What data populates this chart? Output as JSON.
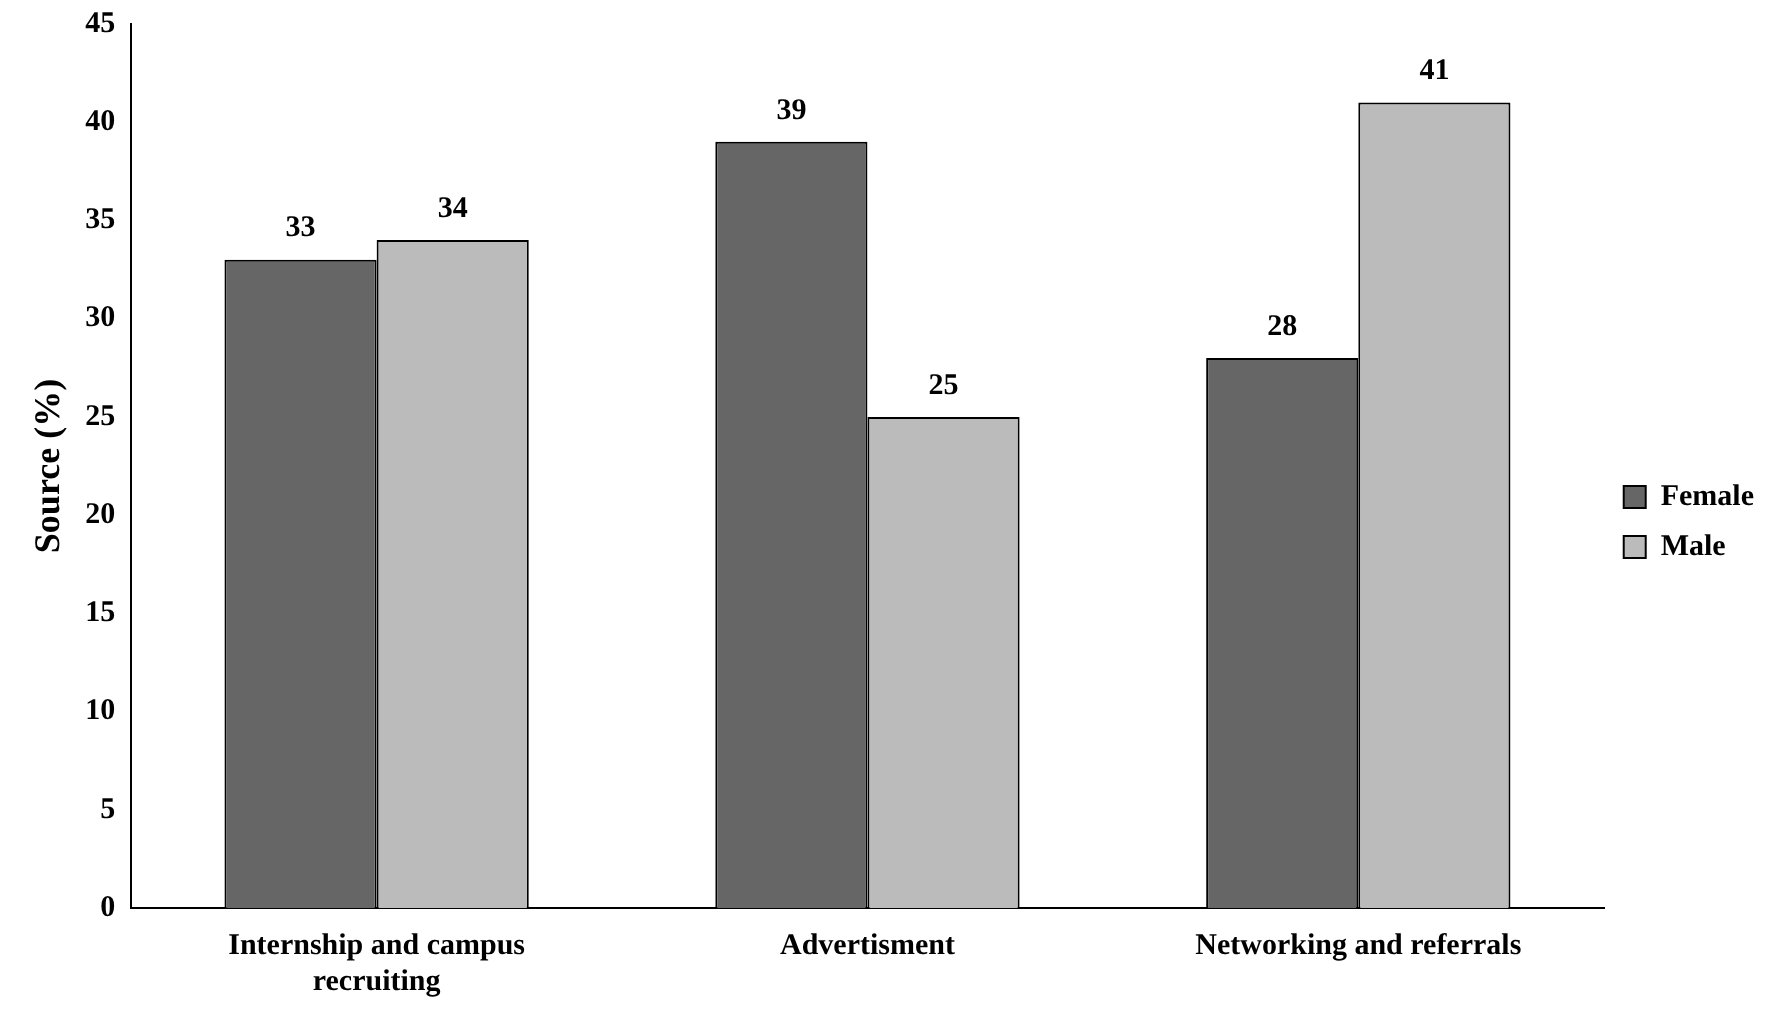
{
  "chart_data": {
    "type": "bar",
    "ylabel": "Source (%)",
    "categories": [
      "Internship and campus recruiting",
      "Advertisment",
      "Networking and referrals"
    ],
    "series": [
      {
        "name": "Female",
        "color": "#666666",
        "values": [
          33,
          39,
          28
        ]
      },
      {
        "name": "Male",
        "color": "#bbbbbb",
        "values": [
          34,
          25,
          41
        ]
      }
    ],
    "ylim": [
      0,
      45
    ],
    "yticks": [
      0,
      5,
      10,
      15,
      20,
      25,
      30,
      35,
      40,
      45
    ],
    "grid": false,
    "legend": "right",
    "data_labels": true
  }
}
